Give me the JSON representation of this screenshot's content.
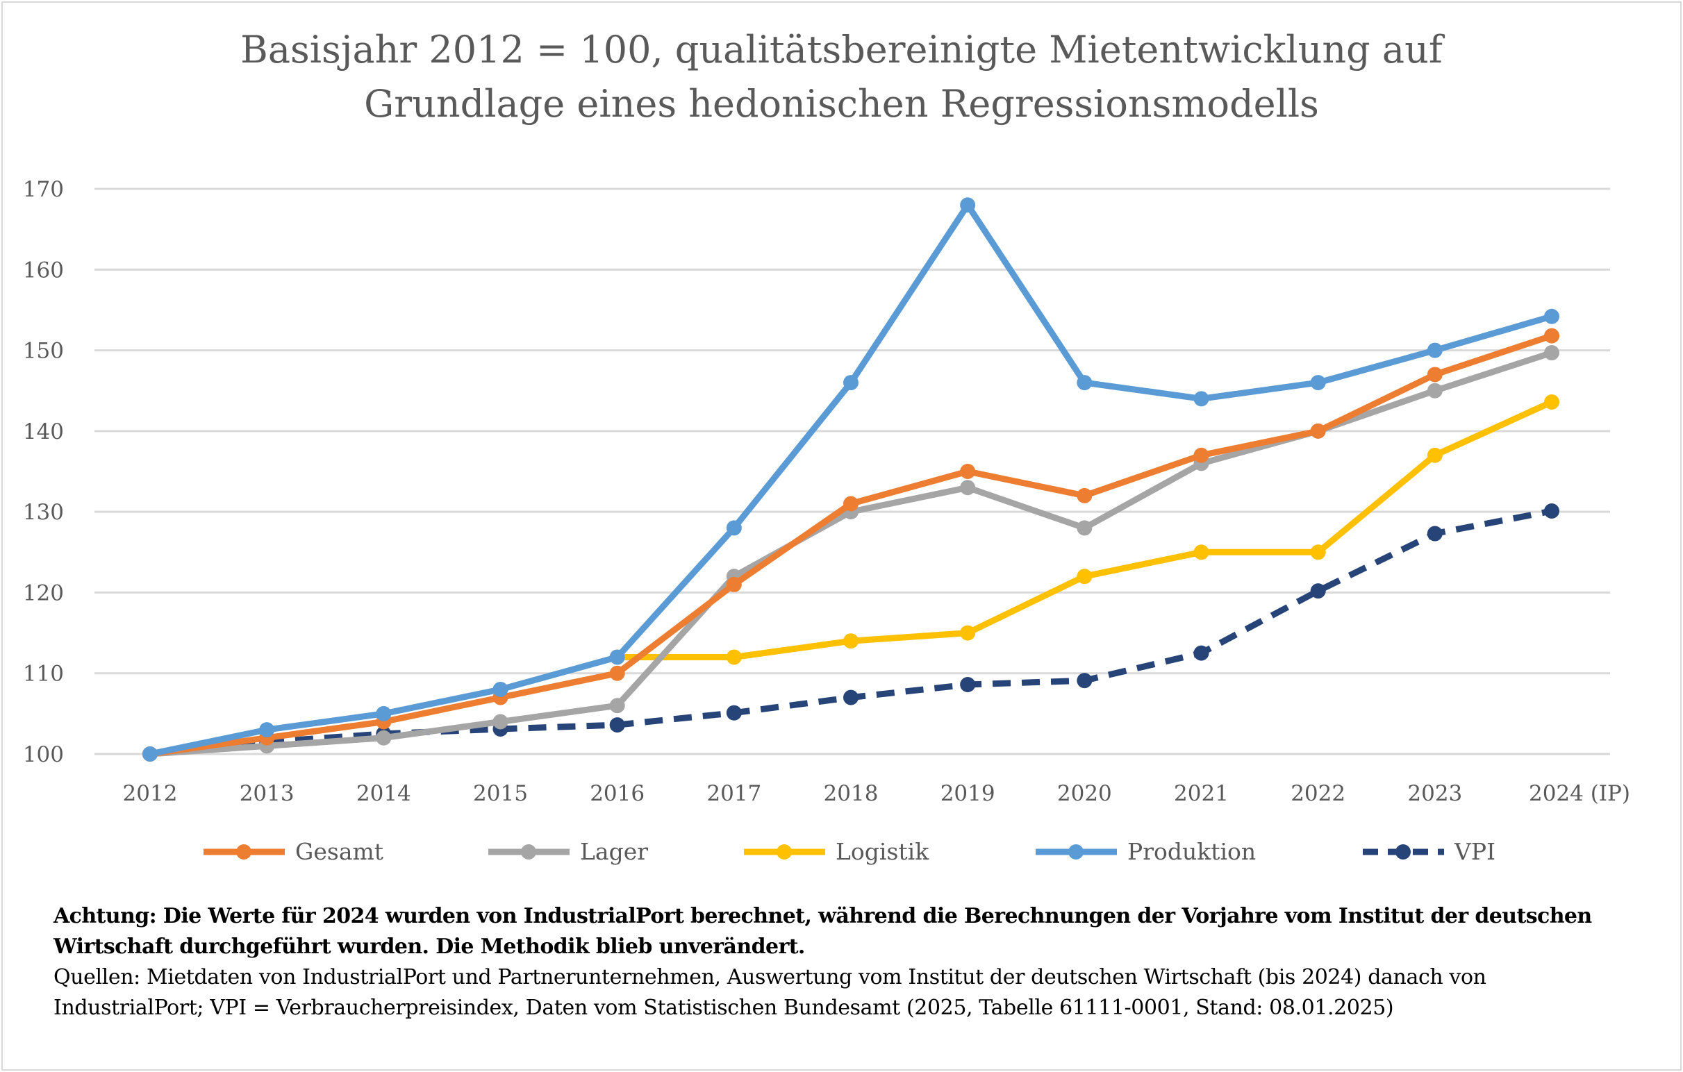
{
  "chart_data": {
    "type": "line",
    "title": "Basisjahr 2012 = 100, qualitätsbereinigte Mietentwicklung auf Grundlage eines hedonischen Regressionsmodells",
    "title_lines": [
      "Basisjahr 2012 = 100, qualitätsbereinigte Mietentwicklung auf",
      "Grundlage eines hedonischen Regressionsmodells"
    ],
    "xlabel": "",
    "ylabel": "",
    "categories": [
      "2012",
      "2013",
      "2014",
      "2015",
      "2016",
      "2017",
      "2018",
      "2019",
      "2020",
      "2021",
      "2022",
      "2023",
      "2024 (IP)"
    ],
    "ylim": [
      100,
      170
    ],
    "yticks": [
      100,
      110,
      120,
      130,
      140,
      150,
      160,
      170
    ],
    "grid": true,
    "legend_position": "bottom",
    "series": [
      {
        "name": "Gesamt",
        "color": "#ED7D31",
        "dashed": false,
        "values": [
          100,
          102,
          104,
          107,
          110,
          121,
          131,
          135,
          132,
          137,
          140,
          147,
          151.8
        ]
      },
      {
        "name": "Lager",
        "color": "#A5A5A5",
        "dashed": false,
        "values": [
          100,
          101,
          102,
          104,
          106,
          122,
          130,
          133,
          128,
          136,
          140,
          145,
          149.7
        ]
      },
      {
        "name": "Logistik",
        "color": "#FFC000",
        "dashed": false,
        "values": [
          null,
          null,
          null,
          null,
          112,
          112,
          114,
          115,
          122,
          125,
          125,
          137,
          143.6
        ]
      },
      {
        "name": "Produktion",
        "color": "#5B9BD5",
        "dashed": false,
        "values": [
          100,
          103,
          105,
          108,
          112,
          128,
          146,
          168,
          146,
          144,
          146,
          150,
          154.2
        ]
      },
      {
        "name": "VPI",
        "color": "#264478",
        "dashed": true,
        "values": [
          100,
          101.5,
          102.5,
          103.1,
          103.6,
          105.1,
          107.0,
          108.6,
          109.1,
          112.5,
          120.2,
          127.3,
          130.1
        ]
      }
    ]
  },
  "notes": {
    "warning_line1": "Achtung: Die Werte für 2024 wurden von IndustrialPort berechnet, während die Berechnungen der Vorjahre vom Institut der deutschen",
    "warning_line2": "Wirtschaft durchgeführt wurden. Die Methodik blieb unverändert.",
    "source_line1": "Quellen: Mietdaten von IndustrialPort und Partnerunternehmen, Auswertung vom Institut der deutschen Wirtschaft (bis 2024) danach von",
    "source_line2": "IndustrialPort; VPI = Verbraucherpreisindex, Daten vom Statistischen Bundesamt (2025, Tabelle 61111-0001, Stand: 08.01.2025)"
  }
}
